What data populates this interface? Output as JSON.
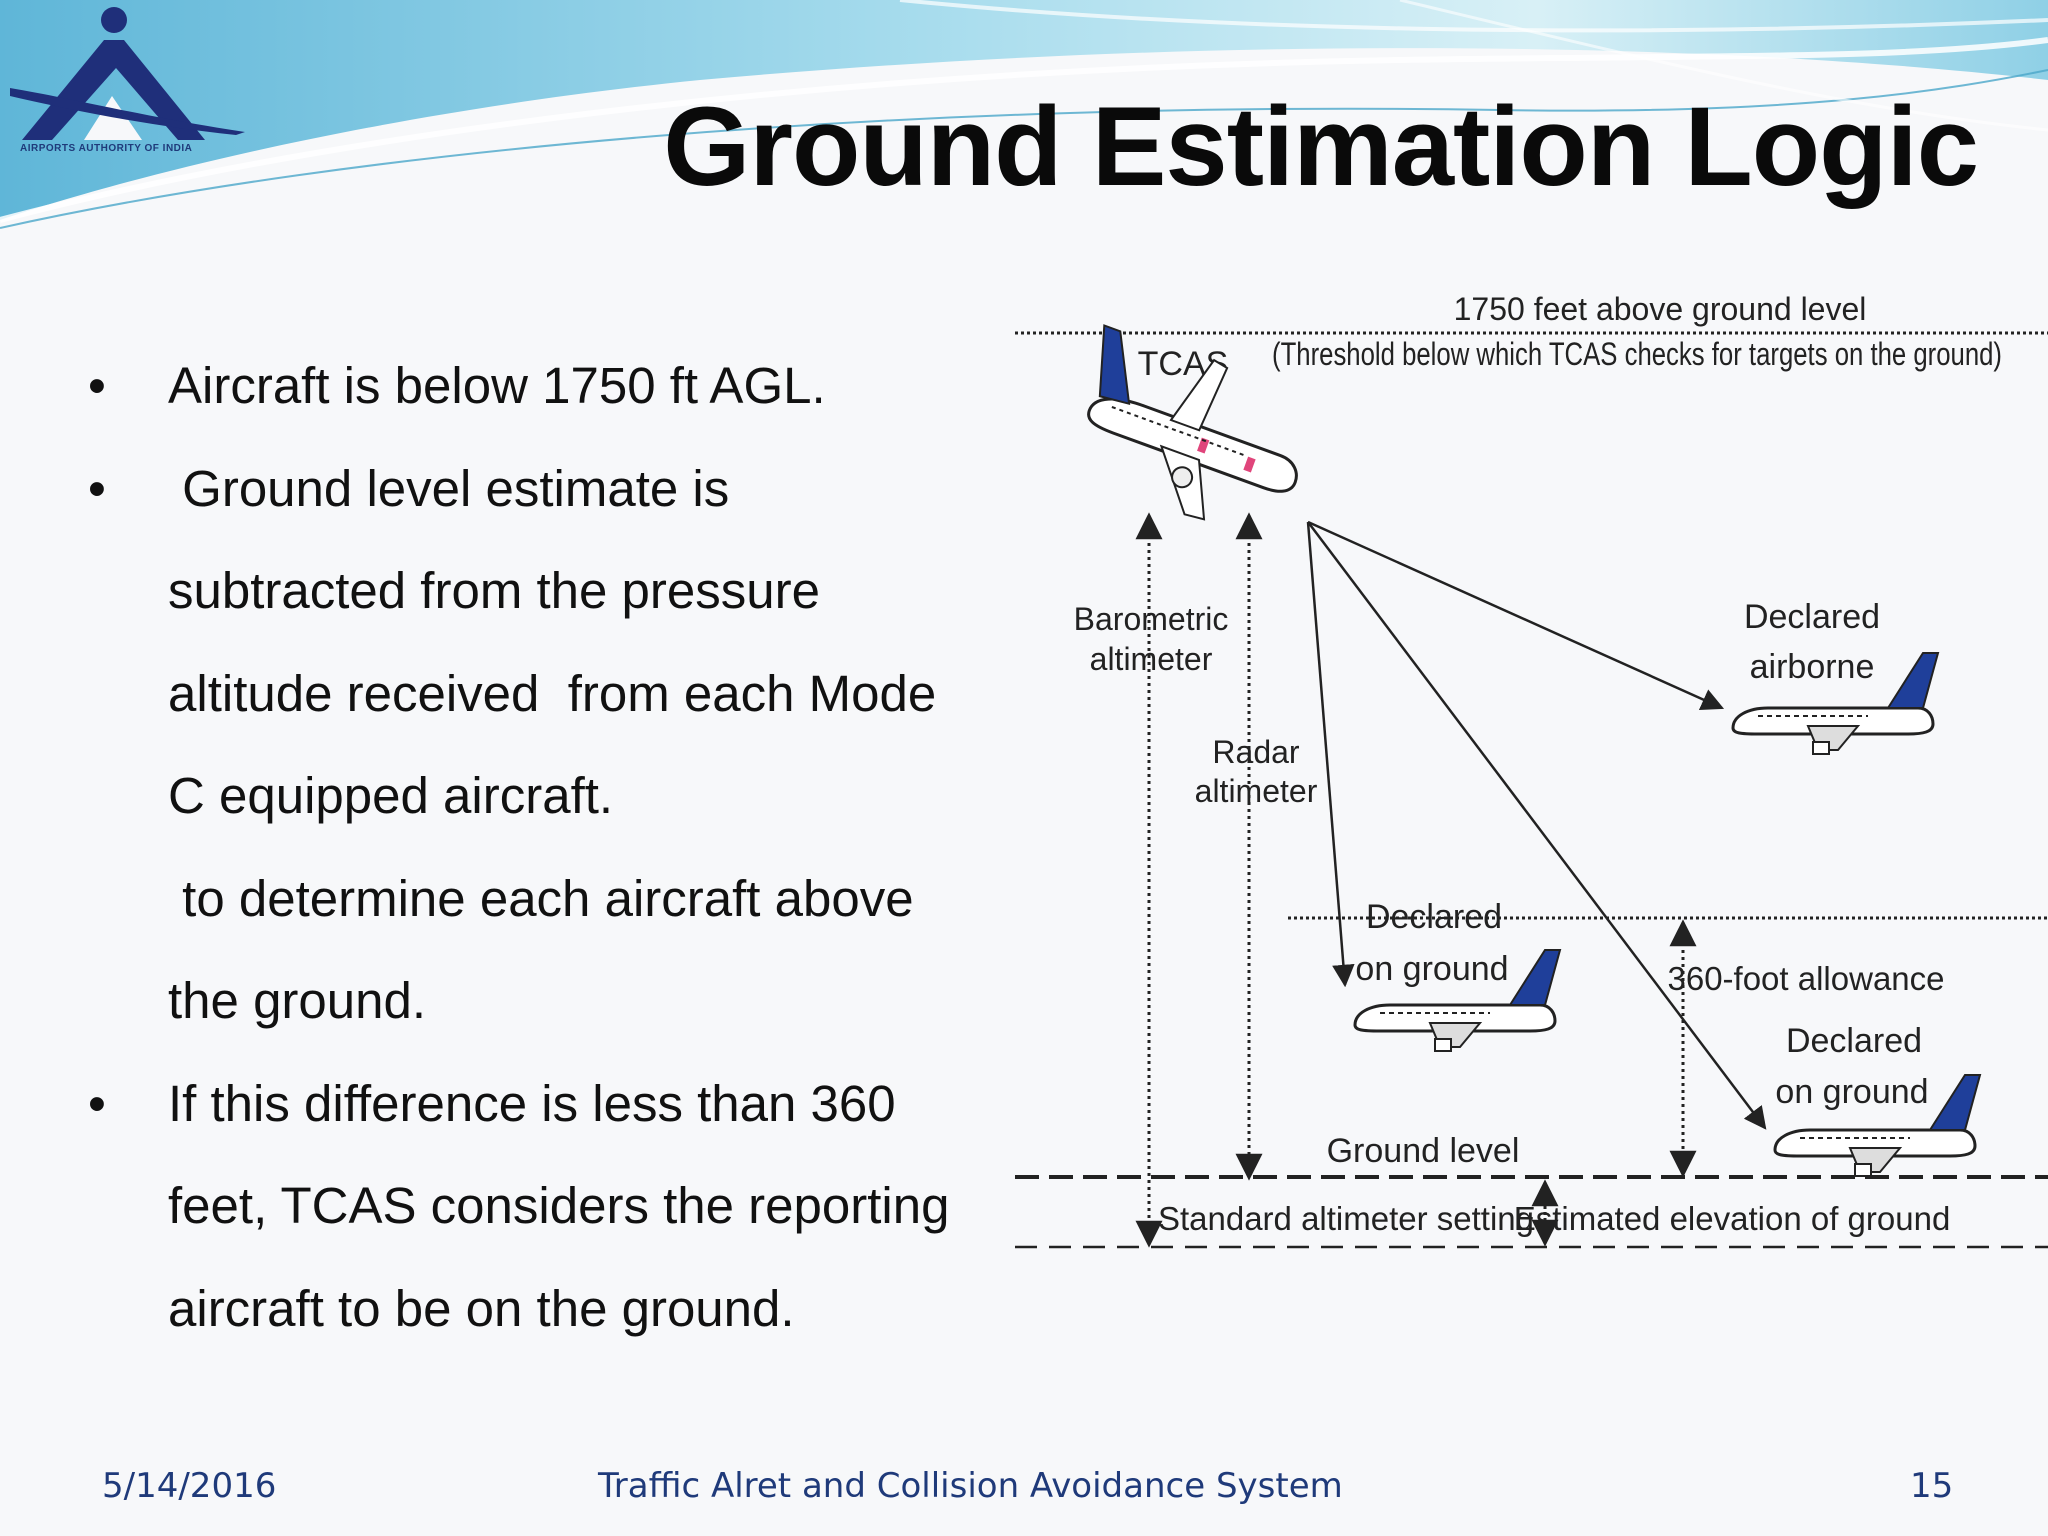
{
  "logo": {
    "icon": "airports-authority-of-india-logo",
    "caption": "AIRPORTS AUTHORITY OF INDIA"
  },
  "slide": {
    "title": "Ground Estimation Logic"
  },
  "bullets": {
    "lines": [
      "Aircraft is below 1750 ft AGL.",
      " Ground level estimate is",
      "subtracted from the pressure",
      "altitude received  from each Mode",
      "C equipped aircraft.",
      " to determine each aircraft above",
      "the ground.",
      "If this difference is less than 360",
      "feet, TCAS considers the reporting",
      "aircraft to be on the ground."
    ],
    "marker": "•"
  },
  "diagram": {
    "threshold_label_1": "1750 feet above ground level",
    "threshold_label_2": "(Threshold below which TCAS checks for targets on the ground)",
    "tcas_label": "TCAS",
    "baro_label_1": "Barometric",
    "baro_label_2": "altimeter",
    "radar_label_1": "Radar",
    "radar_label_2": "altimeter",
    "airborne_label_1": "Declared",
    "airborne_label_2": "airborne",
    "onground1_label_1": "Declared",
    "onground1_label_2": "on ground",
    "allowance_label": "360-foot allowance",
    "onground2_label_1": "Declared",
    "onground2_label_2": "on ground",
    "ground_level_label": "Ground level",
    "std_setting_label": "Standard altimeter setting",
    "est_elevation_label": "Estimated elevation of ground",
    "colors": {
      "tail": "#1f3f9a",
      "line": "#222222"
    }
  },
  "footer": {
    "date": "5/14/2016",
    "center": "Traffic Alret and Collision Avoidance System",
    "page": "15"
  }
}
